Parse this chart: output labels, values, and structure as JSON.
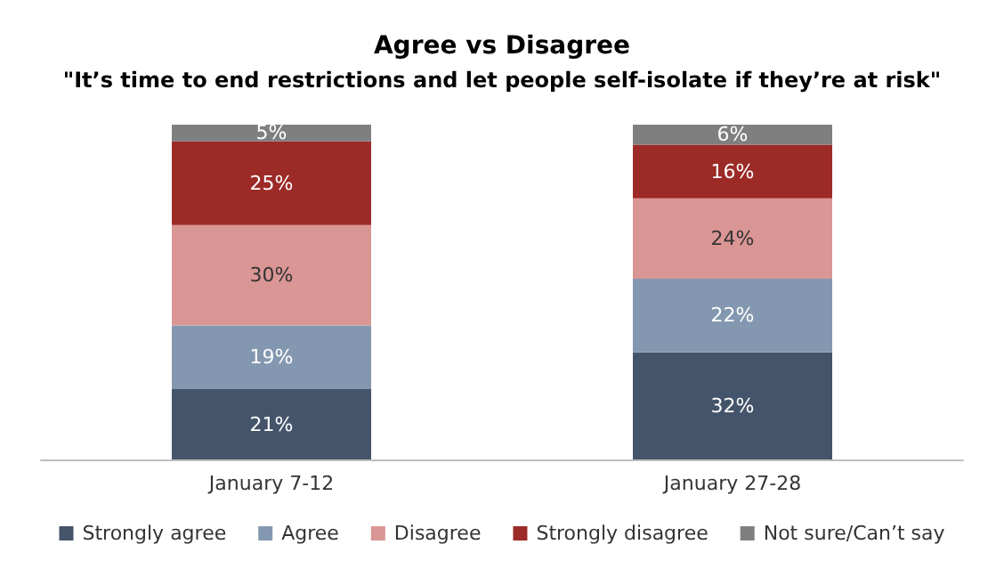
{
  "chart_data": {
    "type": "bar",
    "stacked": true,
    "title": "Agree vs Disagree",
    "subtitle": "\"It’s time to end restrictions and let people self-isolate if they’re at risk\"",
    "categories": [
      "January 7-12",
      "January 27-28"
    ],
    "series": [
      {
        "name": "Strongly agree",
        "color": "#44546a",
        "values": [
          21,
          32
        ],
        "value_labels": [
          "21%",
          "32%"
        ]
      },
      {
        "name": "Agree",
        "color": "#8497b0",
        "values": [
          19,
          22
        ],
        "value_labels": [
          "19%",
          "22%"
        ]
      },
      {
        "name": "Disagree",
        "color": "#da9694",
        "values": [
          30,
          24
        ],
        "value_labels": [
          "30%",
          "24%"
        ]
      },
      {
        "name": "Strongly disagree",
        "color": "#9c2a27",
        "values": [
          25,
          16
        ],
        "value_labels": [
          "25%",
          "16%"
        ]
      },
      {
        "name": "Not sure/Can’t say",
        "color": "#7f7f7f",
        "values": [
          5,
          6
        ],
        "value_labels": [
          "5%",
          "6%"
        ]
      }
    ],
    "legend": "bottom"
  }
}
